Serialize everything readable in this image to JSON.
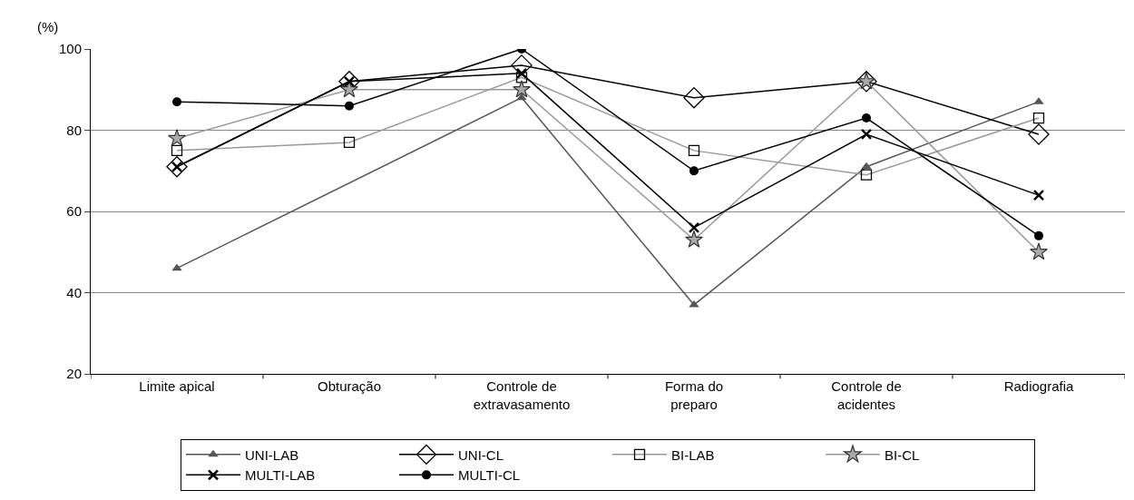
{
  "chart_data": {
    "type": "line",
    "ylabel": "(%)",
    "categories": [
      "Limite apical",
      "Obturação",
      "Controle de\nextravasamento",
      "Forma do\npreparo",
      "Controle de\nacidentes",
      "Radiografia"
    ],
    "series": [
      {
        "name": "UNI-LAB",
        "color": "#555555",
        "marker": "triangle",
        "values": [
          46,
          null,
          88,
          37,
          71,
          87
        ]
      },
      {
        "name": "UNI-CL",
        "color": "#000000",
        "marker": "diamond",
        "values": [
          71,
          92,
          96,
          88,
          92,
          79
        ]
      },
      {
        "name": "BI-LAB",
        "color": "#999999",
        "marker": "square",
        "values": [
          75,
          77,
          93,
          75,
          69,
          83
        ]
      },
      {
        "name": "BI-CL",
        "color": "#999999",
        "marker": "star",
        "values": [
          78,
          90,
          90,
          53,
          92,
          50
        ]
      },
      {
        "name": "MULTI-LAB",
        "color": "#000000",
        "marker": "cross",
        "values": [
          71,
          92,
          94,
          56,
          79,
          64
        ]
      },
      {
        "name": "MULTI-CL",
        "color": "#000000",
        "marker": "circle",
        "values": [
          87,
          86,
          100,
          70,
          83,
          54
        ]
      }
    ],
    "ylim": [
      20,
      100
    ],
    "yticks": [
      20,
      40,
      60,
      80,
      100
    ],
    "grid": "y",
    "legend": "bottom",
    "line_style": "solid"
  }
}
